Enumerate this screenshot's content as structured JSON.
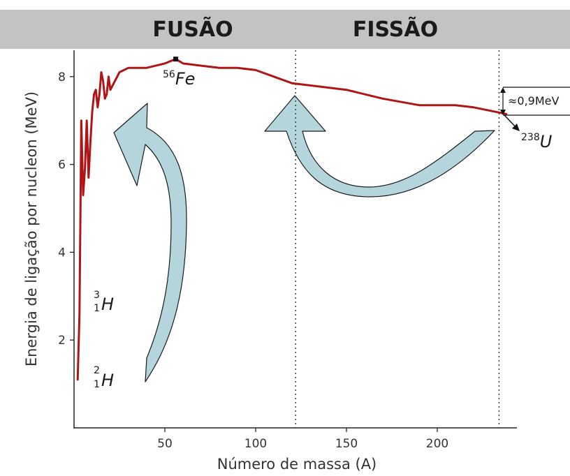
{
  "colors": {
    "curve": "#b01515",
    "banner": "#c3c3c3",
    "arrow_fill": "#b4d5dc",
    "arrow_stroke": "#1a1a1a",
    "axis": "#222222"
  },
  "banner": {
    "fusion_label": "FUSÃO",
    "fission_label": "FISSÃO"
  },
  "chart_data": {
    "type": "line",
    "xlabel": "Número de massa (A)",
    "ylabel": "Energia de ligação por nucleon (MeV)",
    "xlim": [
      0,
      240
    ],
    "ylim": [
      0,
      9
    ],
    "x_ticks": [
      50,
      100,
      150,
      200
    ],
    "y_ticks": [
      2,
      4,
      6,
      8
    ],
    "grid": false,
    "series": [
      {
        "x": [
          2,
          3,
          4,
          5,
          6,
          7,
          8,
          9,
          10,
          11,
          12,
          13,
          14,
          15,
          16,
          17,
          18,
          19,
          20,
          25,
          30,
          40,
          50,
          56,
          60,
          70,
          80,
          90,
          100,
          110,
          120,
          130,
          150,
          170,
          190,
          210,
          220,
          238
        ],
        "y": [
          1.1,
          2.6,
          7.0,
          5.3,
          5.9,
          7.0,
          5.7,
          6.5,
          7.2,
          7.6,
          7.7,
          7.3,
          7.6,
          8.1,
          7.9,
          7.5,
          7.6,
          8.0,
          7.7,
          8.1,
          8.2,
          8.2,
          8.3,
          8.4,
          8.3,
          8.25,
          8.2,
          8.2,
          8.15,
          8.0,
          7.85,
          7.8,
          7.7,
          7.5,
          7.35,
          7.35,
          7.3,
          7.15
        ]
      }
    ],
    "boundaries": [
      122,
      234
    ],
    "annotations": {
      "fe": {
        "mass": "56",
        "symbol": "Fe",
        "x": 56,
        "y": 8.4
      },
      "u": {
        "mass": "238",
        "symbol": "U"
      },
      "h3": {
        "mass": "3",
        "number": "1",
        "symbol": "H"
      },
      "h2": {
        "mass": "2",
        "number": "1",
        "symbol": "H"
      },
      "delta": "≈0,9MeV"
    }
  }
}
